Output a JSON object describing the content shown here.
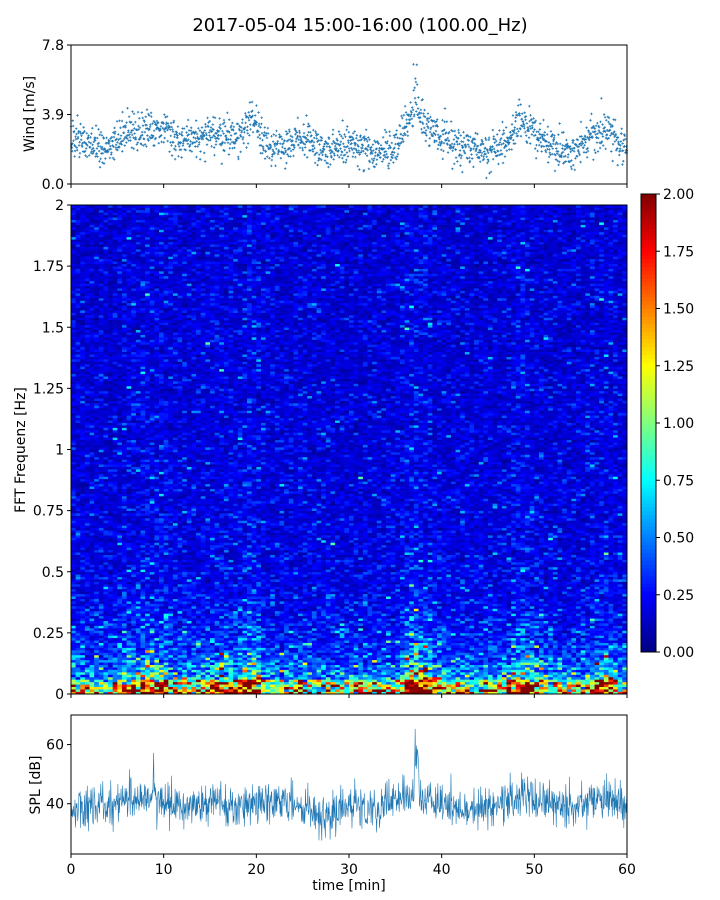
{
  "title": "2017-05-04 15:00-16:00 (100.00_Hz)",
  "chart_data": [
    {
      "type": "scatter",
      "ylabel": "Wind [m/s]",
      "xlim": [
        0,
        60
      ],
      "ylim": [
        0,
        7.8
      ],
      "yticks": [
        "0.0",
        "3.9",
        "7.8"
      ],
      "series_color": "#1f77b4",
      "wind_profile": [
        {
          "t": 0,
          "v": 2.5
        },
        {
          "t": 2,
          "v": 2.2
        },
        {
          "t": 4,
          "v": 2.0
        },
        {
          "t": 6,
          "v": 2.8
        },
        {
          "t": 8,
          "v": 3.0
        },
        {
          "t": 10,
          "v": 3.1
        },
        {
          "t": 12,
          "v": 2.3
        },
        {
          "t": 14,
          "v": 2.6
        },
        {
          "t": 16,
          "v": 2.9
        },
        {
          "t": 18,
          "v": 2.6
        },
        {
          "t": 19.5,
          "v": 3.8
        },
        {
          "t": 21,
          "v": 2.2
        },
        {
          "t": 23,
          "v": 2.1
        },
        {
          "t": 25,
          "v": 2.6
        },
        {
          "t": 27,
          "v": 2.0
        },
        {
          "t": 29,
          "v": 2.2
        },
        {
          "t": 31,
          "v": 2.1
        },
        {
          "t": 33,
          "v": 1.8
        },
        {
          "t": 35,
          "v": 2.0
        },
        {
          "t": 37,
          "v": 4.3
        },
        {
          "t": 39,
          "v": 2.8
        },
        {
          "t": 41,
          "v": 2.3
        },
        {
          "t": 43,
          "v": 2.0
        },
        {
          "t": 45,
          "v": 1.7
        },
        {
          "t": 47,
          "v": 2.4
        },
        {
          "t": 48.5,
          "v": 3.6
        },
        {
          "t": 50,
          "v": 2.9
        },
        {
          "t": 52,
          "v": 2.0
        },
        {
          "t": 54,
          "v": 1.9
        },
        {
          "t": 56,
          "v": 2.6
        },
        {
          "t": 58,
          "v": 3.0
        },
        {
          "t": 60,
          "v": 1.9
        }
      ]
    },
    {
      "type": "heatmap",
      "ylabel": "FFT Frequenz [Hz]",
      "xlim": [
        0,
        60
      ],
      "ylim": [
        0,
        2
      ],
      "yticks": [
        "0",
        "0.25",
        "0.5",
        "0.75",
        "1",
        "1.25",
        "1.5",
        "1.75",
        "2"
      ],
      "colormap": "jet",
      "colorbar": {
        "vmin": 0,
        "vmax": 2,
        "ticks": [
          "0.00",
          "0.25",
          "0.50",
          "0.75",
          "1.00",
          "1.25",
          "1.50",
          "1.75",
          "2.00"
        ]
      }
    },
    {
      "type": "line",
      "ylabel": "SPL [dB]",
      "xlabel": "time [min]",
      "xlim": [
        0,
        60
      ],
      "ylim": [
        23,
        70
      ],
      "xticks": [
        "0",
        "10",
        "20",
        "30",
        "40",
        "50",
        "60"
      ],
      "yticks": [
        "40",
        "60"
      ],
      "series_color": "#1f77b4",
      "spl_profile": [
        {
          "t": 0,
          "v": 38
        },
        {
          "t": 3,
          "v": 40
        },
        {
          "t": 6,
          "v": 41
        },
        {
          "t": 9,
          "v": 42
        },
        {
          "t": 12,
          "v": 38
        },
        {
          "t": 15,
          "v": 41
        },
        {
          "t": 18,
          "v": 39
        },
        {
          "t": 21,
          "v": 42
        },
        {
          "t": 24,
          "v": 40
        },
        {
          "t": 27,
          "v": 36
        },
        {
          "t": 30,
          "v": 40
        },
        {
          "t": 33,
          "v": 38
        },
        {
          "t": 37,
          "v": 44
        },
        {
          "t": 40,
          "v": 40
        },
        {
          "t": 43,
          "v": 38
        },
        {
          "t": 46,
          "v": 40
        },
        {
          "t": 49,
          "v": 43
        },
        {
          "t": 52,
          "v": 39
        },
        {
          "t": 55,
          "v": 40
        },
        {
          "t": 58,
          "v": 42
        },
        {
          "t": 60,
          "v": 40
        }
      ]
    }
  ]
}
